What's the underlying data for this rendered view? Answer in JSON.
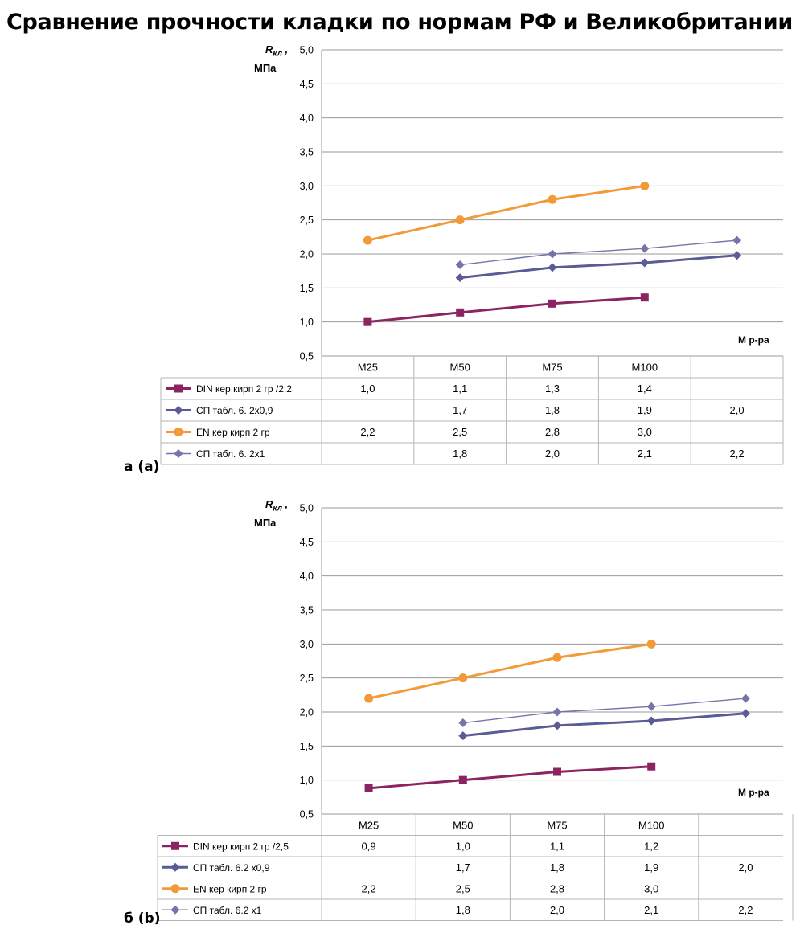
{
  "title": "Сравнение прочности кладки по нормам РФ и Великобритании",
  "chart_data": [
    {
      "type": "line",
      "panel_label": "а (а)",
      "ylabel_symbol": "R",
      "ylabel_sub": "кл",
      "ylabel_unit": "МПа",
      "xlabel": "М р-ра",
      "ylim": [
        0.5,
        5.0
      ],
      "yticks": [
        "0,5",
        "1,0",
        "1,5",
        "2,0",
        "2,5",
        "3,0",
        "3,5",
        "4,0",
        "4,5",
        "5,0"
      ],
      "categories": [
        "М25",
        "М50",
        "М75",
        "М100",
        ""
      ],
      "grid": true,
      "legend_placement": "data-table",
      "series": [
        {
          "name": "DIN кер кирп 2 гр /2,2",
          "color": "#8B2461",
          "marker": "square",
          "width": 3,
          "values": [
            1.0,
            1.14,
            1.27,
            1.36,
            null
          ],
          "labels": [
            "1,0",
            "1,1",
            "1,3",
            "1,4",
            ""
          ]
        },
        {
          "name": "СП табл. 6. 2х0,9",
          "color": "#5B5B96",
          "marker": "diamond",
          "width": 3,
          "values": [
            null,
            1.65,
            1.8,
            1.87,
            1.98
          ],
          "labels": [
            "",
            "1,7",
            "1,8",
            "1,9",
            "2,0"
          ]
        },
        {
          "name": "EN кер кирп 2 гр",
          "color": "#F29A38",
          "marker": "circle",
          "width": 3,
          "values": [
            2.2,
            2.5,
            2.8,
            3.0,
            null
          ],
          "labels": [
            "2,2",
            "2,5",
            "2,8",
            "3,0",
            ""
          ]
        },
        {
          "name": "СП табл. 6. 2х1",
          "color": "#7575AA",
          "marker": "diamond",
          "width": 1.4,
          "values": [
            null,
            1.84,
            2.0,
            2.08,
            2.2
          ],
          "labels": [
            "",
            "1,8",
            "2,0",
            "2,1",
            "2,2"
          ]
        }
      ]
    },
    {
      "type": "line",
      "panel_label": "б (b)",
      "ylabel_symbol": "R",
      "ylabel_sub": "кл",
      "ylabel_unit": "МПа",
      "xlabel": "М р-ра",
      "ylim": [
        0.5,
        5.0
      ],
      "yticks": [
        "0,5",
        "1,0",
        "1,5",
        "2,0",
        "2,5",
        "3,0",
        "3,5",
        "4,0",
        "4,5",
        "5,0"
      ],
      "categories": [
        "М25",
        "М50",
        "М75",
        "М100",
        ""
      ],
      "grid": true,
      "legend_placement": "data-table",
      "series": [
        {
          "name": "DIN кер кирп 2 гр /2,5",
          "color": "#8B2461",
          "marker": "square",
          "width": 3,
          "values": [
            0.88,
            1.0,
            1.12,
            1.2,
            null
          ],
          "labels": [
            "0,9",
            "1,0",
            "1,1",
            "1,2",
            ""
          ]
        },
        {
          "name": "СП табл. 6.2 х0,9",
          "color": "#5B5B96",
          "marker": "diamond",
          "width": 3,
          "values": [
            null,
            1.65,
            1.8,
            1.87,
            1.98
          ],
          "labels": [
            "",
            "1,7",
            "1,8",
            "1,9",
            "2,0"
          ]
        },
        {
          "name": "EN кер кирп 2 гр",
          "color": "#F29A38",
          "marker": "circle",
          "width": 3,
          "values": [
            2.2,
            2.5,
            2.8,
            3.0,
            null
          ],
          "labels": [
            "2,2",
            "2,5",
            "2,8",
            "3,0",
            ""
          ]
        },
        {
          "name": "СП табл. 6.2 х1",
          "color": "#7575AA",
          "marker": "diamond",
          "width": 1.4,
          "values": [
            null,
            1.84,
            2.0,
            2.08,
            2.2
          ],
          "labels": [
            "",
            "1,8",
            "2,0",
            "2,1",
            "2,2"
          ]
        }
      ]
    }
  ]
}
